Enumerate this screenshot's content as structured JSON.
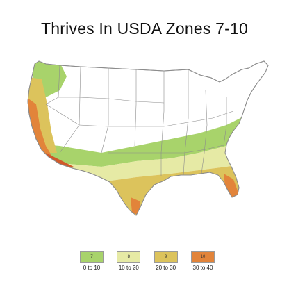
{
  "title": "Thrives In USDA Zones 7-10",
  "legend": [
    {
      "zone": "7",
      "range": "0 to 10",
      "color": "#a8d36b"
    },
    {
      "zone": "8",
      "range": "10 to 20",
      "color": "#e6eaa5"
    },
    {
      "zone": "9",
      "range": "20 to 30",
      "color": "#dcc35c"
    },
    {
      "zone": "10",
      "range": "30 to 40",
      "color": "#e2843a"
    }
  ],
  "colors": {
    "zone7": "#a8d36b",
    "zone8": "#e6eaa5",
    "zone9": "#dcc35c",
    "zone10": "#e2843a",
    "zone10_dark": "#d05a2a",
    "land": "#ffffff",
    "border": "#8c8c8c"
  }
}
